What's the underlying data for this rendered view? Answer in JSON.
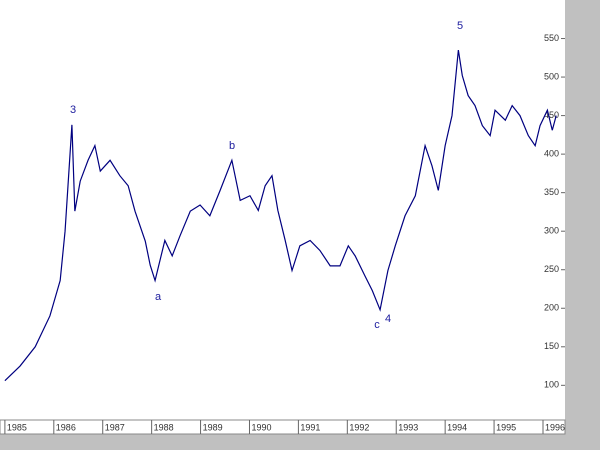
{
  "chart_data": {
    "type": "line",
    "x": [
      1985.0,
      1985.31,
      1985.62,
      1985.92,
      1986.13,
      1986.23,
      1986.37,
      1986.43,
      1986.54,
      1986.7,
      1986.84,
      1986.95,
      1987.15,
      1987.35,
      1987.52,
      1987.66,
      1987.87,
      1987.97,
      1988.07,
      1988.27,
      1988.42,
      1988.58,
      1988.79,
      1988.99,
      1989.19,
      1989.4,
      1989.64,
      1989.81,
      1990.01,
      1990.18,
      1990.32,
      1990.46,
      1990.58,
      1990.73,
      1990.87,
      1991.03,
      1991.24,
      1991.44,
      1991.65,
      1991.85,
      1992.02,
      1992.16,
      1992.36,
      1992.51,
      1992.67,
      1992.83,
      1992.98,
      1993.18,
      1993.39,
      1993.59,
      1993.73,
      1993.86,
      1994.0,
      1994.14,
      1994.27,
      1994.35,
      1994.47,
      1994.61,
      1994.76,
      1994.92,
      1995.02,
      1995.23,
      1995.37,
      1995.53,
      1995.7,
      1995.84,
      1995.94,
      1996.09,
      1996.19,
      1996.27
    ],
    "values": [
      106,
      125,
      150,
      190,
      236,
      300,
      438,
      326,
      365,
      392,
      411,
      378,
      392,
      372,
      359,
      326,
      287,
      256,
      236,
      288,
      268,
      294,
      326,
      334,
      320,
      353,
      392,
      340,
      346,
      327,
      359,
      372,
      327,
      288,
      249,
      281,
      288,
      275,
      255,
      255,
      281,
      268,
      242,
      223,
      198,
      249,
      281,
      320,
      346,
      411,
      385,
      353,
      411,
      450,
      535,
      502,
      476,
      463,
      437,
      424,
      457,
      444,
      463,
      450,
      424,
      411,
      437,
      457,
      431,
      450
    ],
    "color": "#000080",
    "xlim": [
      1984.9,
      1996.45
    ],
    "xticks": [
      1985,
      1986,
      1987,
      1988,
      1989,
      1990,
      1991,
      1992,
      1993,
      1994,
      1995,
      1996
    ],
    "ylim": [
      55,
      600
    ],
    "yticks": [
      100,
      150,
      200,
      250,
      300,
      350,
      400,
      450,
      500,
      550
    ],
    "annotations": [
      "3",
      "a",
      "b",
      "c",
      "4",
      "5"
    ]
  }
}
